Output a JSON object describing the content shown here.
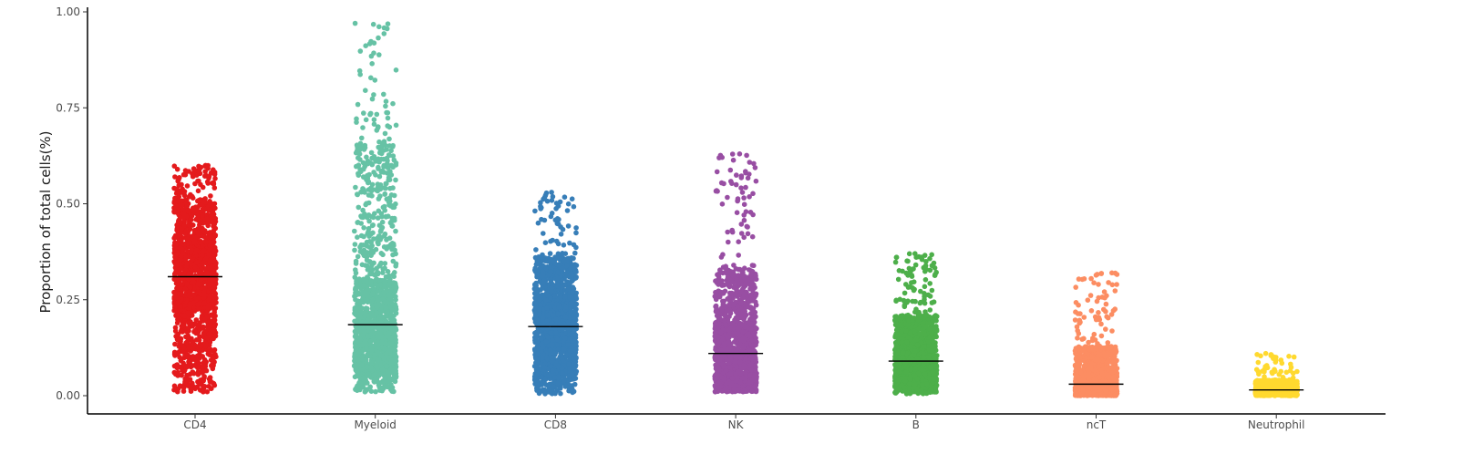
{
  "chart_data": {
    "type": "scatter",
    "subtype": "jitter-strip-with-median",
    "title": "",
    "xlabel": "",
    "ylabel": "Proportion of total cells(%)",
    "ylim": [
      -0.04,
      1.01
    ],
    "yticks": [
      0.0,
      0.25,
      0.5,
      0.75,
      1.0
    ],
    "ytick_labels": [
      "0.00",
      "0.25",
      "0.50",
      "0.75",
      "1.00"
    ],
    "grid": false,
    "legend": "none",
    "categories": [
      "CD4",
      "Myeloid",
      "CD8",
      "NK",
      "B",
      "ncT",
      "Neutrophil"
    ],
    "series": [
      {
        "category": "CD4",
        "color": "#e41a1c",
        "median": 0.31,
        "min": 0.01,
        "max": 0.6,
        "n_points": 1400,
        "q05": 0.07,
        "q25": 0.22,
        "q75": 0.4,
        "q95": 0.51
      },
      {
        "category": "Myeloid",
        "color": "#66c2a5",
        "median": 0.185,
        "min": 0.01,
        "max": 0.97,
        "n_points": 1400,
        "q05": 0.05,
        "q25": 0.11,
        "q75": 0.3,
        "q95": 0.66
      },
      {
        "category": "CD8",
        "color": "#377eb8",
        "median": 0.18,
        "min": 0.005,
        "max": 0.53,
        "n_points": 1400,
        "q05": 0.04,
        "q25": 0.11,
        "q75": 0.26,
        "q95": 0.36
      },
      {
        "category": "NK",
        "color": "#984ea3",
        "median": 0.11,
        "min": 0.01,
        "max": 0.63,
        "n_points": 1400,
        "q05": 0.02,
        "q25": 0.05,
        "q75": 0.19,
        "q95": 0.34
      },
      {
        "category": "B",
        "color": "#4daf4a",
        "median": 0.09,
        "min": 0.005,
        "max": 0.37,
        "n_points": 1400,
        "q05": 0.02,
        "q25": 0.05,
        "q75": 0.14,
        "q95": 0.21
      },
      {
        "category": "ncT",
        "color": "#fc8d62",
        "median": 0.03,
        "min": 0.0,
        "max": 0.32,
        "n_points": 1400,
        "q05": 0.003,
        "q25": 0.012,
        "q75": 0.07,
        "q95": 0.13
      },
      {
        "category": "Neutrophil",
        "color": "#ffd92f",
        "median": 0.015,
        "min": 0.0,
        "max": 0.11,
        "n_points": 1000,
        "q05": 0.002,
        "q25": 0.008,
        "q75": 0.025,
        "q95": 0.04
      }
    ],
    "median_line_color": "#000000"
  }
}
